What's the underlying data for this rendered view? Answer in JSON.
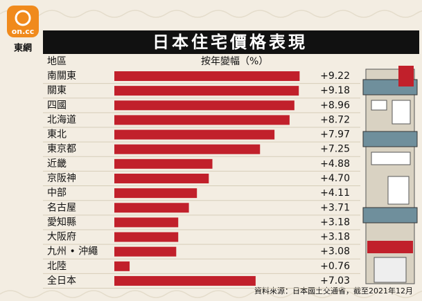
{
  "brand": {
    "logo": "on.cc",
    "name": "東網"
  },
  "chart_data": {
    "type": "hbar",
    "title": "日本住宅價格表現",
    "category_header": "地區",
    "value_header": "按年變幅（%）",
    "categories": [
      "南關東",
      "關東",
      "四國",
      "北海道",
      "東北",
      "東京都",
      "近畿",
      "京阪神",
      "中部",
      "名古屋",
      "愛知縣",
      "大阪府",
      "九州 • 沖繩",
      "北陸",
      "全日本"
    ],
    "values": [
      9.22,
      9.18,
      8.96,
      8.72,
      7.97,
      7.25,
      4.88,
      4.7,
      4.11,
      3.71,
      3.18,
      3.18,
      3.08,
      0.76,
      7.03
    ],
    "value_labels": [
      "+9.22",
      "+9.18",
      "+8.96",
      "+8.72",
      "+7.97",
      "+7.25",
      "+4.88",
      "+4.70",
      "+4.11",
      "+3.71",
      "+3.18",
      "+3.18",
      "+3.08",
      "+0.76",
      "+7.03"
    ],
    "color": "#c1202b",
    "source": "資料來源：日本國土交通省，截至2021年12月"
  }
}
